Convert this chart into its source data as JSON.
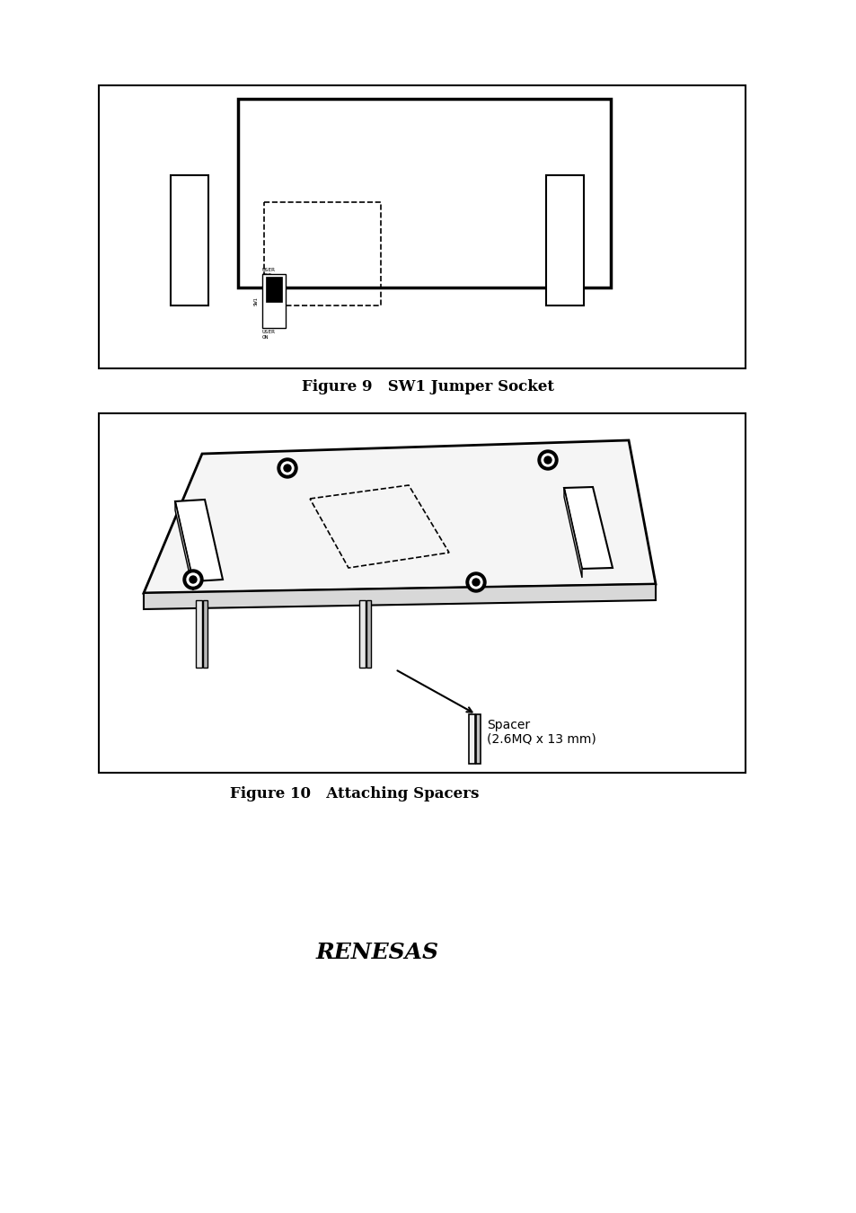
{
  "fig_width": 9.54,
  "fig_height": 13.5,
  "bg_color": "#ffffff",
  "fig9_title": "Figure 9   SW1 Jumper Socket",
  "fig10_title": "Figure 10   Attaching Spacers",
  "spacer_label_line1": "Spacer",
  "spacer_label_line2": "(2.6MQ x 13 mm)"
}
